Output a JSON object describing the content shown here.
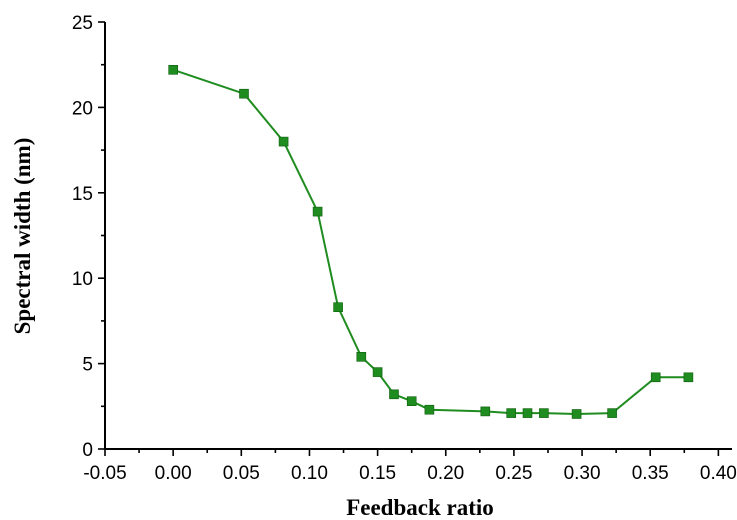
{
  "chart_data": {
    "type": "line",
    "title": "",
    "xlabel": "Feedback  ratio",
    "ylabel": "Spectral width (nm)",
    "xlim": [
      -0.05,
      0.41
    ],
    "ylim": [
      0,
      25
    ],
    "x_ticks": [
      -0.05,
      0.0,
      0.05,
      0.1,
      0.15,
      0.2,
      0.25,
      0.3,
      0.35,
      0.4
    ],
    "x_tick_labels": [
      "-0.05",
      "0.00",
      "0.05",
      "0.10",
      "0.15",
      "0.20",
      "0.25",
      "0.30",
      "0.35",
      "0.40"
    ],
    "y_ticks": [
      0,
      5,
      10,
      15,
      20,
      25
    ],
    "y_tick_labels": [
      "0",
      "5",
      "10",
      "15",
      "20",
      "25"
    ],
    "grid": false,
    "legend": "none",
    "series_color": "#1f8c1f",
    "series": [
      {
        "marker": "square",
        "x": [
          0.0,
          0.052,
          0.081,
          0.106,
          0.121,
          0.138,
          0.15,
          0.162,
          0.175,
          0.188,
          0.229,
          0.248,
          0.26,
          0.272,
          0.296,
          0.322,
          0.354,
          0.378
        ],
        "y": [
          22.2,
          20.8,
          18.0,
          13.9,
          8.3,
          5.4,
          4.5,
          3.2,
          2.8,
          2.3,
          2.2,
          2.1,
          2.1,
          2.1,
          2.05,
          2.1,
          4.2,
          4.2
        ]
      }
    ]
  }
}
